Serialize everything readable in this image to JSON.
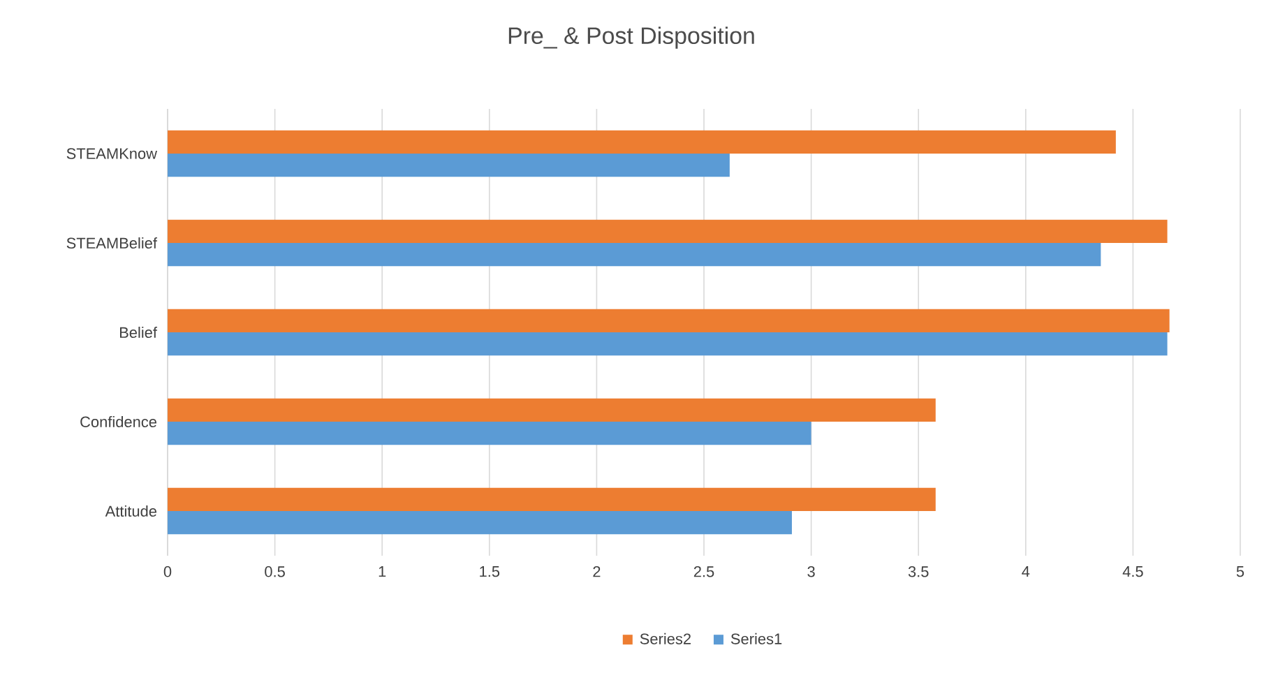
{
  "chart_data": {
    "type": "bar",
    "orientation": "horizontal",
    "title": "Pre_ & Post Disposition",
    "categories": [
      "STEAMKnow",
      "STEAMBelief",
      "Belief",
      "Confidence",
      "Attitude"
    ],
    "series": [
      {
        "name": "Series1",
        "color": "#5b9bd5",
        "values": [
          2.62,
          4.35,
          4.66,
          3.0,
          2.91
        ]
      },
      {
        "name": "Series2",
        "color": "#ed7d31",
        "values": [
          4.42,
          4.66,
          4.67,
          3.58,
          3.58
        ]
      }
    ],
    "xlim": [
      0,
      5
    ],
    "xticks": [
      0,
      0.5,
      1,
      1.5,
      2,
      2.5,
      3,
      3.5,
      4,
      4.5,
      5
    ],
    "grid": "x",
    "legend": "bottom"
  }
}
